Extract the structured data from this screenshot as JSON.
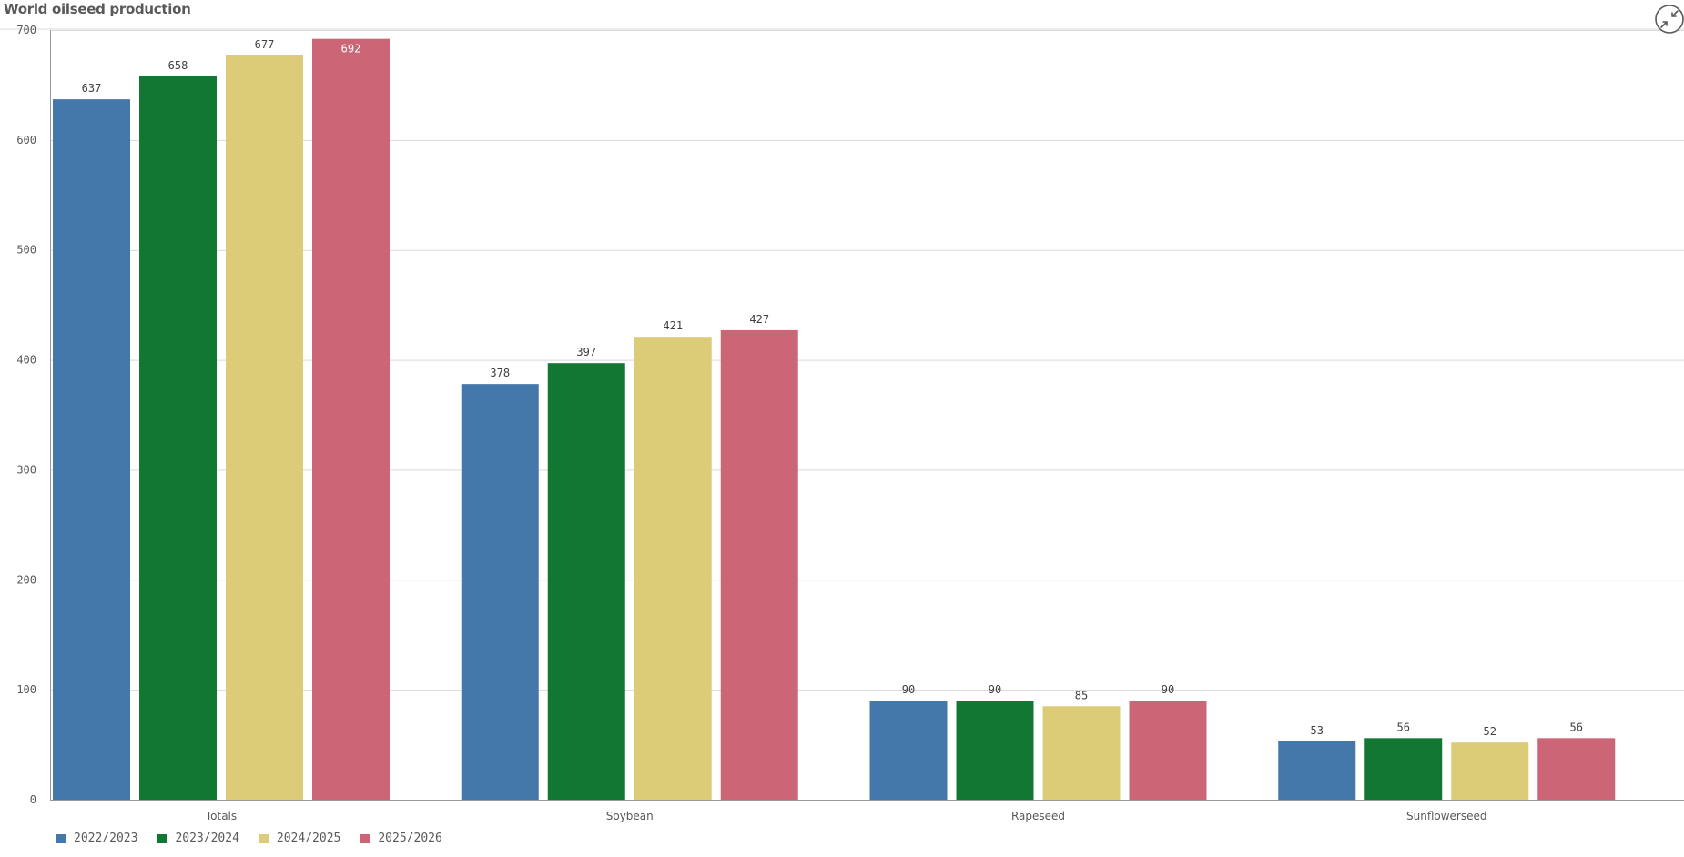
{
  "title": "World oilseed production",
  "colors": {
    "series": [
      "#4477aa",
      "#117733",
      "#ddcc77",
      "#cc6677"
    ],
    "gridline": "#d9d9d9",
    "axis": "#999999"
  },
  "icons": {
    "collapse": "collapse-arrows-icon"
  },
  "chart_data": {
    "type": "bar",
    "title": "World oilseed production",
    "xlabel": "",
    "ylabel": "",
    "ylim": [
      0,
      700
    ],
    "yticks": [
      "0",
      "100",
      "200",
      "300",
      "400",
      "500",
      "600",
      "700"
    ],
    "grid": true,
    "legend_position": "bottom-left",
    "categories": [
      "Totals",
      "Soybean",
      "Rapeseed",
      "Sunflowerseed"
    ],
    "series": [
      {
        "name": "2022/2023",
        "values": [
          637,
          378,
          90,
          53
        ]
      },
      {
        "name": "2023/2024",
        "values": [
          658,
          397,
          90,
          56
        ]
      },
      {
        "name": "2024/2025",
        "values": [
          677,
          421,
          85,
          52
        ]
      },
      {
        "name": "2025/2026",
        "values": [
          692,
          427,
          90,
          56
        ]
      }
    ]
  }
}
